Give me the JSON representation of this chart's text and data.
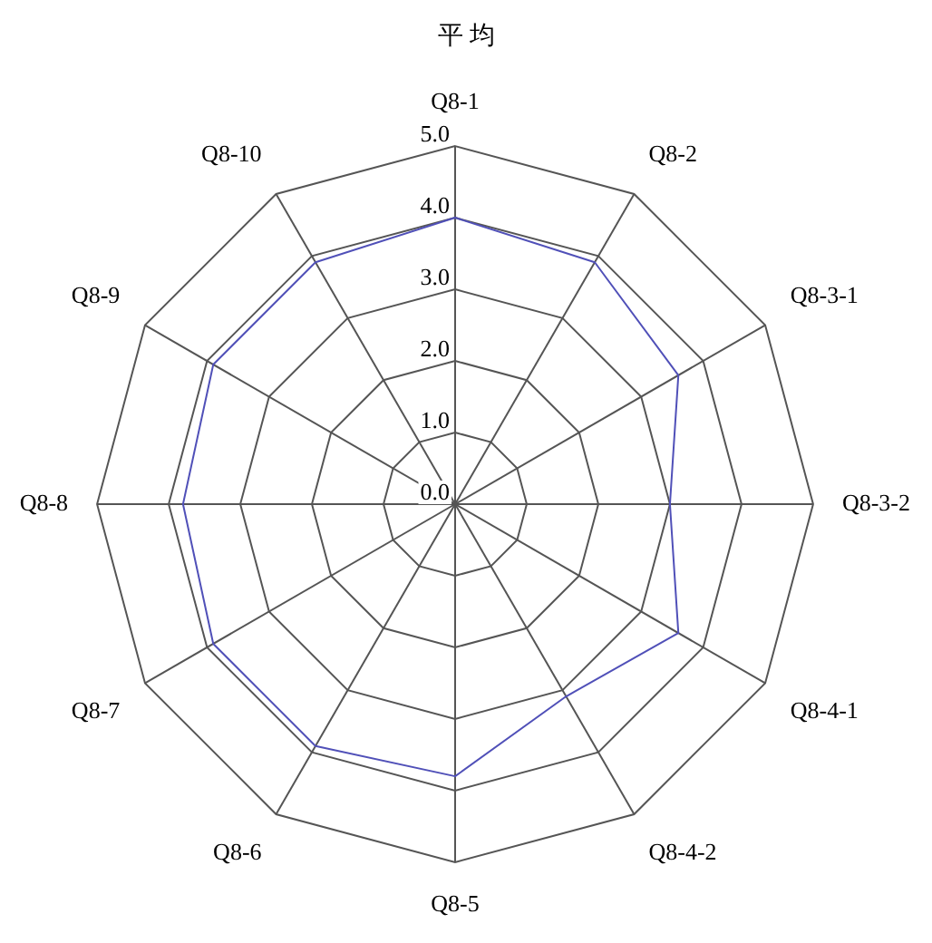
{
  "chart_data": {
    "type": "radar",
    "title": "平 均",
    "categories": [
      "Q8-1",
      "Q8-2",
      "Q8-3-1",
      "Q8-3-2",
      "Q8-4-1",
      "Q8-4-2",
      "Q8-5",
      "Q8-6",
      "Q8-7",
      "Q8-8",
      "Q8-9",
      "Q8-10"
    ],
    "series": [
      {
        "color": "#5050b8",
        "values": [
          4.0,
          3.9,
          3.6,
          3.0,
          3.6,
          3.1,
          3.8,
          3.9,
          3.9,
          3.8,
          3.9,
          3.9
        ]
      }
    ],
    "ylim": [
      0,
      5
    ],
    "yticks": [
      {
        "value": 0,
        "label": "0.0"
      },
      {
        "value": 1,
        "label": "1.0"
      },
      {
        "value": 2,
        "label": "2.0"
      },
      {
        "value": 3,
        "label": "3.0"
      },
      {
        "value": 4,
        "label": "4.0"
      },
      {
        "value": 5,
        "label": "5.0"
      }
    ],
    "grid": true,
    "legend": false,
    "marker": "none",
    "line_style": "solid"
  }
}
